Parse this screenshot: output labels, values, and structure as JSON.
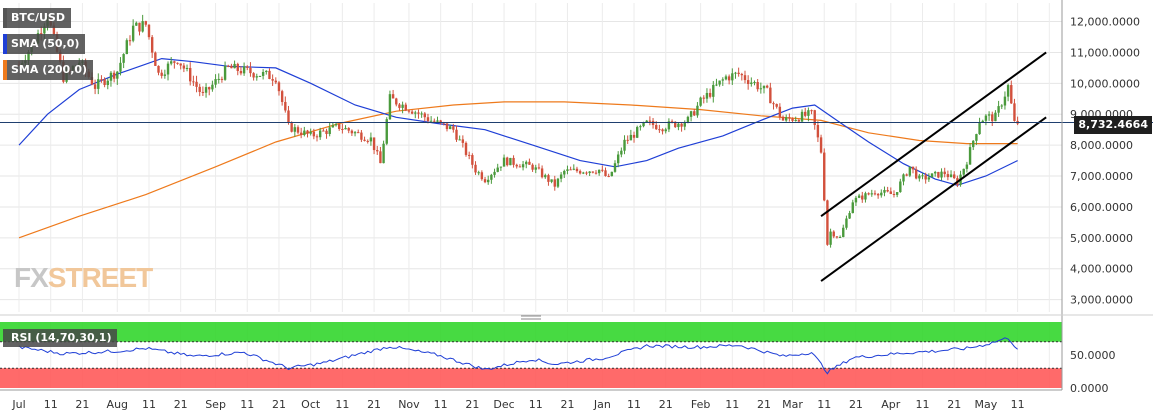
{
  "legend": {
    "pair": "BTC/USD",
    "sma50_label": "SMA (50,0)",
    "sma200_label": "SMA (200,0)",
    "rsi_label": "RSI (14,70,30,1)"
  },
  "watermark": {
    "part1": "FX",
    "part2": "STREET"
  },
  "colors": {
    "bull": "#4a9a3c",
    "bear": "#d2503c",
    "sma50": "#1f3fd6",
    "sma200": "#ee7a1c",
    "rsi_line": "#1f3fd6",
    "overbought_zone": "#33d62e",
    "oversold_zone": "#ff5a5a",
    "price_line": "#1f3f6f",
    "channel": "#000000"
  },
  "chart_data": [
    {
      "type": "candlestick",
      "title": "BTC/USD",
      "current_price": 8732.4664,
      "current_price_label": "8,732.4664",
      "ylim": [
        2600,
        12600
      ],
      "y_ticks": [
        3000,
        4000,
        5000,
        6000,
        7000,
        8000,
        9000,
        10000,
        11000,
        12000
      ],
      "y_tick_labels": [
        "3,000.0000",
        "4,000.0000",
        "5,000.0000",
        "6,000.0000",
        "7,000.0000",
        "8,000.0000",
        "9,000.0000",
        "10,000.0000",
        "11,000.0000",
        "12,000.0000"
      ],
      "x_tick_labels": [
        "Jul",
        "11",
        "21",
        "Aug",
        "11",
        "21",
        "Sep",
        "11",
        "21",
        "Oct",
        "11",
        "21",
        "Nov",
        "11",
        "21",
        "Dec",
        "11",
        "21",
        "Jan",
        "11",
        "21",
        "Feb",
        "11",
        "21",
        "Mar",
        "11",
        "21",
        "Apr",
        "11",
        "21",
        "May",
        "11"
      ],
      "close_anchors": [
        [
          "2019-07-01",
          10600
        ],
        [
          "2019-07-05",
          11200
        ],
        [
          "2019-07-10",
          12200
        ],
        [
          "2019-07-15",
          10200
        ],
        [
          "2019-07-20",
          10700
        ],
        [
          "2019-07-25",
          9900
        ],
        [
          "2019-08-01",
          10400
        ],
        [
          "2019-08-06",
          11800
        ],
        [
          "2019-08-10",
          11900
        ],
        [
          "2019-08-14",
          10300
        ],
        [
          "2019-08-20",
          10800
        ],
        [
          "2019-08-28",
          9600
        ],
        [
          "2019-09-05",
          10500
        ],
        [
          "2019-09-15",
          10300
        ],
        [
          "2019-09-20",
          10200
        ],
        [
          "2019-09-24",
          8600
        ],
        [
          "2019-10-01",
          8300
        ],
        [
          "2019-10-10",
          8600
        ],
        [
          "2019-10-20",
          8200
        ],
        [
          "2019-10-23",
          7400
        ],
        [
          "2019-10-26",
          9500
        ],
        [
          "2019-11-01",
          9200
        ],
        [
          "2019-11-08",
          8800
        ],
        [
          "2019-11-15",
          8500
        ],
        [
          "2019-11-22",
          7200
        ],
        [
          "2019-11-25",
          6900
        ],
        [
          "2019-12-01",
          7500
        ],
        [
          "2019-12-10",
          7300
        ],
        [
          "2019-12-17",
          6700
        ],
        [
          "2019-12-20",
          7150
        ],
        [
          "2019-12-31",
          7200
        ],
        [
          "2020-01-03",
          6900
        ],
        [
          "2020-01-08",
          8100
        ],
        [
          "2020-01-15",
          8700
        ],
        [
          "2020-01-20",
          8600
        ],
        [
          "2020-01-28",
          8800
        ],
        [
          "2020-02-01",
          9400
        ],
        [
          "2020-02-09",
          10200
        ],
        [
          "2020-02-13",
          10300
        ],
        [
          "2020-02-18",
          10000
        ],
        [
          "2020-02-22",
          9700
        ],
        [
          "2020-02-27",
          8800
        ],
        [
          "2020-03-07",
          9000
        ],
        [
          "2020-03-10",
          7800
        ],
        [
          "2020-03-12",
          4800
        ],
        [
          "2020-03-13",
          5200
        ],
        [
          "2020-03-16",
          5000
        ],
        [
          "2020-03-20",
          6200
        ],
        [
          "2020-03-27",
          6500
        ],
        [
          "2020-04-02",
          6400
        ],
        [
          "2020-04-07",
          7300
        ],
        [
          "2020-04-10",
          6900
        ],
        [
          "2020-04-18",
          7100
        ],
        [
          "2020-04-22",
          6800
        ],
        [
          "2020-04-25",
          7500
        ],
        [
          "2020-04-29",
          8800
        ],
        [
          "2020-05-01",
          8900
        ],
        [
          "2020-05-04",
          8900
        ],
        [
          "2020-05-08",
          9900
        ],
        [
          "2020-05-10",
          8700
        ],
        [
          "2020-05-11",
          8732
        ]
      ],
      "sma50": [
        [
          "2019-07-01",
          8000
        ],
        [
          "2019-07-10",
          9000
        ],
        [
          "2019-07-20",
          9800
        ],
        [
          "2019-08-01",
          10300
        ],
        [
          "2019-08-15",
          10800
        ],
        [
          "2019-08-25",
          10700
        ],
        [
          "2019-09-05",
          10550
        ],
        [
          "2019-09-20",
          10500
        ],
        [
          "2019-10-01",
          10000
        ],
        [
          "2019-10-15",
          9300
        ],
        [
          "2019-10-28",
          8900
        ],
        [
          "2019-11-10",
          8700
        ],
        [
          "2019-11-25",
          8500
        ],
        [
          "2019-12-10",
          8000
        ],
        [
          "2019-12-25",
          7500
        ],
        [
          "2020-01-05",
          7300
        ],
        [
          "2020-01-15",
          7500
        ],
        [
          "2020-01-25",
          7900
        ],
        [
          "2020-02-08",
          8300
        ],
        [
          "2020-02-20",
          8800
        ],
        [
          "2020-03-01",
          9200
        ],
        [
          "2020-03-08",
          9300
        ],
        [
          "2020-03-15",
          8800
        ],
        [
          "2020-03-25",
          8100
        ],
        [
          "2020-04-05",
          7400
        ],
        [
          "2020-04-15",
          6900
        ],
        [
          "2020-04-22",
          6700
        ],
        [
          "2020-05-01",
          7000
        ],
        [
          "2020-05-11",
          7500
        ]
      ],
      "sma200": [
        [
          "2019-07-01",
          5000
        ],
        [
          "2019-07-20",
          5700
        ],
        [
          "2019-08-10",
          6400
        ],
        [
          "2019-09-01",
          7300
        ],
        [
          "2019-09-20",
          8100
        ],
        [
          "2019-10-10",
          8700
        ],
        [
          "2019-10-28",
          9100
        ],
        [
          "2019-11-15",
          9300
        ],
        [
          "2019-12-01",
          9400
        ],
        [
          "2019-12-20",
          9400
        ],
        [
          "2020-01-10",
          9300
        ],
        [
          "2020-02-01",
          9150
        ],
        [
          "2020-02-20",
          8950
        ],
        [
          "2020-03-10",
          8800
        ],
        [
          "2020-03-25",
          8400
        ],
        [
          "2020-04-10",
          8150
        ],
        [
          "2020-04-25",
          8050
        ],
        [
          "2020-05-11",
          8050
        ]
      ],
      "horizontal_line": 8732.4664,
      "channel_lines": [
        [
          [
            "2020-03-10",
            5700
          ],
          [
            "2020-05-20",
            11000
          ]
        ],
        [
          [
            "2020-03-10",
            3600
          ],
          [
            "2020-05-20",
            8900
          ]
        ]
      ]
    },
    {
      "type": "line",
      "title": "RSI (14,70,30,1)",
      "ylim": [
        0,
        100
      ],
      "y_ticks": [
        0,
        50
      ],
      "y_tick_labels": [
        "0.0000",
        "50.0000"
      ],
      "overbought": 70,
      "oversold": 30,
      "rsi": [
        [
          "2019-07-01",
          62
        ],
        [
          "2019-07-15",
          52
        ],
        [
          "2019-08-01",
          56
        ],
        [
          "2019-08-10",
          60
        ],
        [
          "2019-08-25",
          48
        ],
        [
          "2019-09-10",
          54
        ],
        [
          "2019-09-24",
          30
        ],
        [
          "2019-10-05",
          38
        ],
        [
          "2019-10-26",
          63
        ],
        [
          "2019-11-10",
          50
        ],
        [
          "2019-11-25",
          28
        ],
        [
          "2019-12-10",
          44
        ],
        [
          "2019-12-17",
          36
        ],
        [
          "2020-01-01",
          45
        ],
        [
          "2020-01-15",
          64
        ],
        [
          "2020-02-01",
          62
        ],
        [
          "2020-02-13",
          65
        ],
        [
          "2020-02-27",
          48
        ],
        [
          "2020-03-07",
          54
        ],
        [
          "2020-03-12",
          24
        ],
        [
          "2020-03-20",
          46
        ],
        [
          "2020-04-05",
          53
        ],
        [
          "2020-04-15",
          56
        ],
        [
          "2020-04-25",
          60
        ],
        [
          "2020-05-01",
          66
        ],
        [
          "2020-05-08",
          76
        ],
        [
          "2020-05-11",
          59
        ]
      ]
    }
  ]
}
